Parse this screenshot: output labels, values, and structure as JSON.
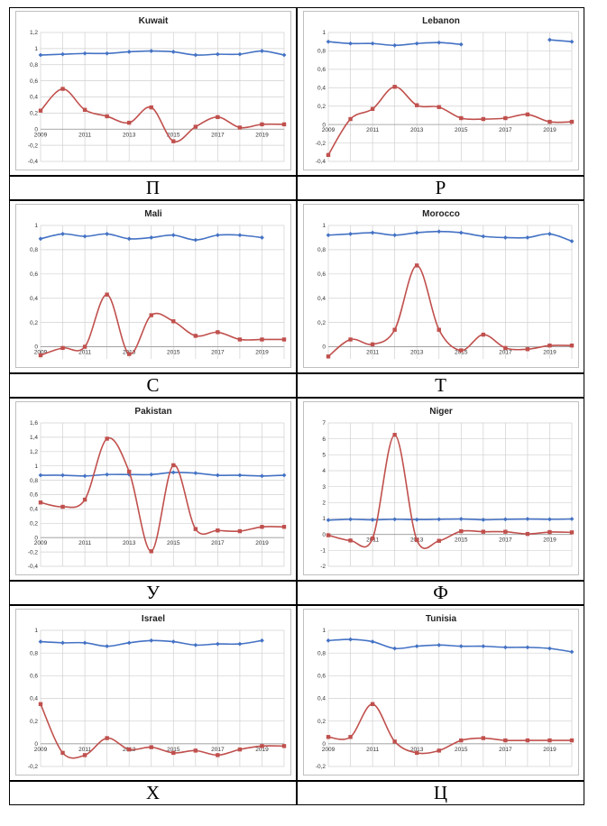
{
  "colors": {
    "index_series": "#4472C4",
    "change_series": "#C0504D",
    "grid": "#D0D0D0",
    "frame": "#BFBFBF"
  },
  "panels": [
    {
      "label": "П",
      "chart_data": {
        "type": "line",
        "title": "Kuwait",
        "x": [
          2009,
          2010,
          2011,
          2012,
          2013,
          2014,
          2015,
          2016,
          2017,
          2018,
          2019,
          2020
        ],
        "ylim": [
          -0.4,
          1.2
        ],
        "ystep": 0.2,
        "yticks": [
          "-0,4",
          "-0,2",
          "0",
          "0,2",
          "0,4",
          "0,6",
          "0,8",
          "1",
          "1,2"
        ],
        "xticks": [
          "2009",
          "2011",
          "2013",
          "2015",
          "2017",
          "2019"
        ],
        "series": [
          {
            "values": [
              0.92,
              0.93,
              0.94,
              0.94,
              0.96,
              0.97,
              0.96,
              0.92,
              0.93,
              0.93,
              0.97,
              0.92
            ]
          },
          {
            "values": [
              0.23,
              0.5,
              0.24,
              0.16,
              0.08,
              0.27,
              -0.15,
              0.03,
              0.15,
              0.02,
              0.06,
              0.06
            ]
          }
        ]
      }
    },
    {
      "label": "Р",
      "chart_data": {
        "type": "line",
        "title": "Lebanon",
        "x": [
          2009,
          2010,
          2011,
          2012,
          2013,
          2014,
          2015,
          2016,
          2017,
          2018,
          2019,
          2020
        ],
        "ylim": [
          -0.4,
          1.0
        ],
        "ystep": 0.2,
        "yticks": [
          "-0,4",
          "-0,2",
          "0",
          "0,2",
          "0,4",
          "0,6",
          "0,8",
          "1"
        ],
        "xticks": [
          "2009",
          "2011",
          "2013",
          "2015",
          "2017",
          "2019"
        ],
        "series": [
          {
            "values": [
              0.9,
              0.88,
              0.88,
              0.86,
              0.88,
              0.89,
              0.87,
              null,
              null,
              null,
              0.92,
              0.9
            ]
          },
          {
            "values": [
              -0.33,
              0.06,
              0.17,
              0.41,
              0.21,
              0.19,
              0.07,
              0.06,
              0.07,
              0.11,
              0.03,
              0.03
            ]
          }
        ]
      }
    },
    {
      "label": "С",
      "chart_data": {
        "type": "line",
        "title": "Mali",
        "x": [
          2009,
          2010,
          2011,
          2012,
          2013,
          2014,
          2015,
          2016,
          2017,
          2018,
          2019,
          2020
        ],
        "ylim": [
          -0.1,
          1.0
        ],
        "ystep": 0.2,
        "yticks": [
          "0",
          "0,2",
          "0,4",
          "0,6",
          "0,8",
          "1"
        ],
        "ytickvals": [
          0,
          0.2,
          0.4,
          0.6,
          0.8,
          1.0
        ],
        "xticks": [
          "2009",
          "2011",
          "2013",
          "2015",
          "2017",
          "2019"
        ],
        "series": [
          {
            "values": [
              0.89,
              0.93,
              0.91,
              0.93,
              0.89,
              0.9,
              0.92,
              0.88,
              0.92,
              0.92,
              0.9,
              null
            ]
          },
          {
            "values": [
              -0.07,
              -0.01,
              0.0,
              0.43,
              -0.06,
              0.26,
              0.21,
              0.09,
              0.12,
              0.06,
              0.06,
              0.06
            ]
          }
        ]
      }
    },
    {
      "label": "Т",
      "chart_data": {
        "type": "line",
        "title": "Morocco",
        "x": [
          2009,
          2010,
          2011,
          2012,
          2013,
          2014,
          2015,
          2016,
          2017,
          2018,
          2019,
          2020
        ],
        "ylim": [
          -0.1,
          1.0
        ],
        "ystep": 0.2,
        "yticks": [
          "-0,2",
          "0",
          "0,2",
          "0,4",
          "0,6",
          "0,8",
          "1"
        ],
        "ytickvals": [
          -0.2,
          0,
          0.2,
          0.4,
          0.6,
          0.8,
          1.0
        ],
        "xticks": [
          "2011",
          "2013",
          "2015",
          "2017",
          "2019"
        ],
        "series": [
          {
            "values": [
              0.92,
              0.93,
              0.94,
              0.92,
              0.94,
              0.95,
              0.94,
              0.91,
              0.9,
              0.9,
              0.93,
              0.87
            ]
          },
          {
            "values": [
              -0.08,
              0.06,
              0.02,
              0.14,
              0.67,
              0.14,
              -0.03,
              0.1,
              -0.01,
              -0.02,
              0.01,
              0.01
            ]
          }
        ]
      }
    },
    {
      "label": "У",
      "chart_data": {
        "type": "line",
        "title": "Pakistan",
        "x": [
          2009,
          2010,
          2011,
          2012,
          2013,
          2014,
          2015,
          2016,
          2017,
          2018,
          2019,
          2020
        ],
        "ylim": [
          -0.4,
          1.6
        ],
        "ystep": 0.2,
        "yticks": [
          "-0,4",
          "-0,2",
          "0",
          "0,2",
          "0,4",
          "0,6",
          "0,8",
          "1",
          "1,2",
          "1,4",
          "1,6"
        ],
        "xticks": [
          "2009",
          "2011",
          "2013",
          "2015",
          "2017",
          "2019"
        ],
        "series": [
          {
            "values": [
              0.87,
              0.87,
              0.86,
              0.88,
              0.88,
              0.88,
              0.91,
              0.9,
              0.87,
              0.87,
              0.86,
              0.87
            ]
          },
          {
            "values": [
              0.49,
              0.43,
              0.53,
              1.38,
              0.92,
              -0.19,
              1.01,
              0.12,
              0.1,
              0.09,
              0.15,
              0.15
            ]
          }
        ]
      }
    },
    {
      "label": "Ф",
      "chart_data": {
        "type": "line",
        "title": "Niger",
        "x": [
          2009,
          2010,
          2011,
          2012,
          2013,
          2014,
          2015,
          2016,
          2017,
          2018,
          2019,
          2020
        ],
        "ylim": [
          -2,
          7
        ],
        "ystep": 1,
        "yticks": [
          "-2",
          "-1",
          "0",
          "1",
          "2",
          "3",
          "4",
          "5",
          "6",
          "7"
        ],
        "xticks": [
          "2011",
          "2013",
          "2015",
          "2017",
          "2019"
        ],
        "series": [
          {
            "values": [
              0.9,
              0.95,
              0.92,
              0.95,
              0.93,
              0.95,
              0.97,
              0.92,
              0.95,
              0.97,
              0.95,
              0.97
            ]
          },
          {
            "values": [
              -0.05,
              -0.38,
              -0.25,
              6.25,
              -0.35,
              -0.4,
              0.2,
              0.17,
              0.17,
              0.03,
              0.15,
              0.13
            ]
          }
        ]
      }
    },
    {
      "label": "Х",
      "chart_data": {
        "type": "line",
        "title": "Israel",
        "x": [
          2009,
          2010,
          2011,
          2012,
          2013,
          2014,
          2015,
          2016,
          2017,
          2018,
          2019,
          2020
        ],
        "ylim": [
          -0.2,
          1.0
        ],
        "ystep": 0.2,
        "yticks": [
          "-0,2",
          "0",
          "0,2",
          "0,4",
          "0,6",
          "0,8",
          "1"
        ],
        "xticks": [
          "2009",
          "2011",
          "2013",
          "2015",
          "2017",
          "2019"
        ],
        "series": [
          {
            "values": [
              0.9,
              0.89,
              0.89,
              0.86,
              0.89,
              0.91,
              0.9,
              0.87,
              0.88,
              0.88,
              0.91,
              null
            ]
          },
          {
            "values": [
              0.35,
              -0.08,
              -0.1,
              0.05,
              -0.05,
              -0.03,
              -0.08,
              -0.06,
              -0.1,
              -0.05,
              -0.02,
              -0.02
            ]
          }
        ]
      }
    },
    {
      "label": "Ц",
      "chart_data": {
        "type": "line",
        "title": "Tunisia",
        "x": [
          2009,
          2010,
          2011,
          2012,
          2013,
          2014,
          2015,
          2016,
          2017,
          2018,
          2019,
          2020
        ],
        "ylim": [
          -0.2,
          1.0
        ],
        "ystep": 0.2,
        "yticks": [
          "-0,2",
          "0",
          "0,2",
          "0,4",
          "0,6",
          "0,8",
          "1"
        ],
        "xticks": [
          "2009",
          "2011",
          "2013",
          "2015",
          "2017",
          "2019"
        ],
        "series": [
          {
            "values": [
              0.91,
              0.92,
              0.9,
              0.84,
              0.86,
              0.87,
              0.86,
              0.86,
              0.85,
              0.85,
              0.84,
              0.81
            ]
          },
          {
            "values": [
              0.06,
              0.06,
              0.35,
              0.02,
              -0.08,
              -0.06,
              0.03,
              0.05,
              0.03,
              0.03,
              0.03,
              0.03
            ]
          }
        ]
      }
    }
  ]
}
